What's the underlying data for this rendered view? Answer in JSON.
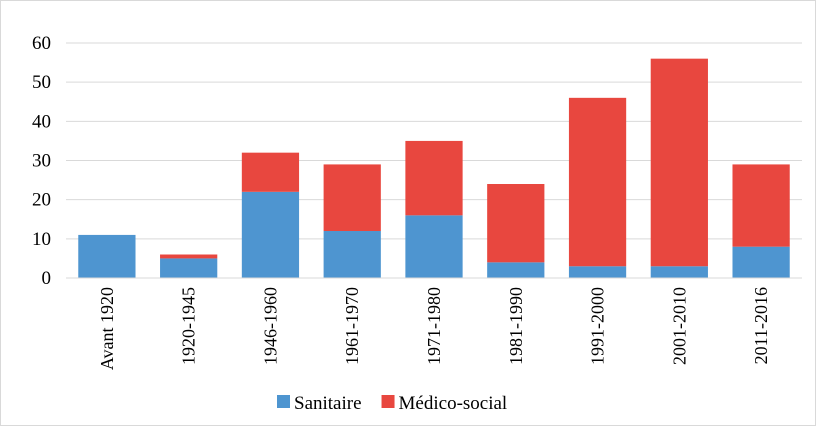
{
  "chart_data": {
    "type": "bar",
    "stacked": true,
    "categories": [
      "Avant 1920",
      "1920-1945",
      "1946-1960",
      "1961-1970",
      "1971-1980",
      "1981-1990",
      "1991-2000",
      "2001-2010",
      "2011-2016"
    ],
    "series": [
      {
        "name": "Sanitaire",
        "color": "#4e95d0",
        "values": [
          11,
          5,
          22,
          12,
          16,
          4,
          3,
          3,
          8
        ]
      },
      {
        "name": "Médico-social",
        "color": "#e8473f",
        "values": [
          0,
          1,
          10,
          17,
          19,
          20,
          43,
          53,
          21
        ]
      }
    ],
    "ylim": [
      0,
      60
    ],
    "yticks": [
      0,
      10,
      20,
      30,
      40,
      50,
      60
    ],
    "grid": true,
    "legend_position": "bottom"
  }
}
